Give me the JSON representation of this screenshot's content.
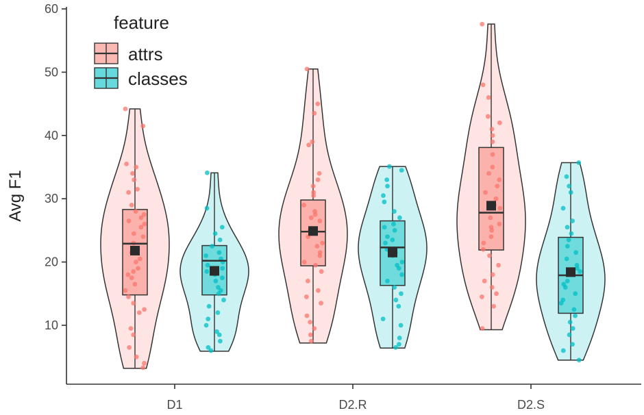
{
  "chart_data": {
    "type": "violin",
    "ylabel": "Avg F1",
    "xlabel": "",
    "ylim": [
      1,
      60
    ],
    "yticks": [
      10,
      20,
      30,
      40,
      50,
      60
    ],
    "categories": [
      "D1",
      "D2.R",
      "D2.S"
    ],
    "legend": {
      "title": "feature",
      "position": "top-left",
      "entries": [
        {
          "label": "attrs",
          "fill": "#f8766d"
        },
        {
          "label": "classes",
          "fill": "#00bfc4"
        }
      ]
    },
    "colors": {
      "attrs": "#f8766d",
      "classes": "#00bfc4",
      "line": "#333333",
      "mean": "#2b2b2b"
    },
    "series": [
      {
        "name": "attrs",
        "groups": [
          {
            "category": "D1",
            "min": 3.2,
            "q1": 14.8,
            "median": 22.9,
            "q3": 28.3,
            "max": 44.2,
            "mean": 21.8,
            "points": [
              44.2,
              41.5,
              35.5,
              35,
              34,
              33,
              31.5,
              31,
              29,
              28,
              27.5,
              27,
              26.5,
              26,
              25.5,
              24.5,
              24,
              23,
              22,
              21.5,
              20.5,
              20,
              19,
              18.5,
              18,
              17.5,
              16.5,
              15.5,
              14.5,
              13.5,
              12.5,
              12,
              9.5,
              8.5,
              6.5,
              5,
              4,
              3.3
            ]
          },
          {
            "category": "D2.R",
            "min": 7.2,
            "q1": 19.4,
            "median": 24.8,
            "q3": 29.8,
            "max": 50.5,
            "mean": 24.9,
            "points": [
              50.5,
              45,
              43.5,
              39,
              38.5,
              34,
              33,
              32,
              31,
              30.5,
              29,
              28,
              27.5,
              27,
              26.5,
              25,
              24.5,
              24,
              23,
              22.5,
              21.5,
              21,
              20,
              19.5,
              18.5,
              17,
              15.5,
              14.5,
              13.5,
              11.5,
              10.5,
              9.5,
              8.5,
              7.5
            ]
          },
          {
            "category": "D2.S",
            "min": 9.3,
            "q1": 21.9,
            "median": 27.8,
            "q3": 38.1,
            "max": 57.6,
            "mean": 28.9,
            "points": [
              57.6,
              48,
              46,
              43,
              42,
              41,
              40,
              39,
              37,
              35,
              34,
              33,
              32,
              31,
              30,
              29,
              28.5,
              27,
              26,
              25.5,
              25,
              24,
              23,
              22,
              21,
              19.5,
              18,
              17,
              16,
              15,
              14.5,
              13,
              9.5
            ]
          }
        ]
      },
      {
        "name": "classes",
        "groups": [
          {
            "category": "D1",
            "min": 5.9,
            "q1": 14.8,
            "median": 20.2,
            "q3": 22.6,
            "max": 34.1,
            "mean": 18.6,
            "points": [
              34.1,
              28.5,
              25.5,
              24.5,
              23.5,
              22.5,
              21.5,
              21,
              20.5,
              20,
              19.5,
              19,
              18.5,
              18,
              17.5,
              17,
              16,
              15.5,
              15,
              14,
              13,
              12,
              11,
              10,
              9,
              8.5,
              7.5,
              6.5,
              6
            ]
          },
          {
            "category": "D2.R",
            "min": 6.4,
            "q1": 16.3,
            "median": 22.3,
            "q3": 26.5,
            "max": 35.1,
            "mean": 21.5,
            "points": [
              35.1,
              34.5,
              33,
              32,
              30.5,
              29.5,
              28,
              27,
              26,
              25.5,
              25,
              24,
              23.5,
              23,
              22,
              21.5,
              21,
              20,
              19.5,
              19,
              18,
              17,
              16,
              15,
              14,
              13,
              11,
              10,
              8,
              7,
              6.5
            ]
          },
          {
            "category": "D2.S",
            "min": 4.5,
            "q1": 11.9,
            "median": 17.9,
            "q3": 23.9,
            "max": 35.7,
            "mean": 18.4,
            "points": [
              35.7,
              33.5,
              32,
              31,
              28.5,
              26.5,
              25.5,
              24.5,
              23.5,
              22.5,
              21.5,
              20.5,
              19.5,
              19,
              18.5,
              18,
              17,
              16.5,
              16,
              15,
              14,
              13.5,
              12.5,
              11.5,
              10.5,
              9.5,
              8.5,
              7,
              6,
              4.5
            ]
          }
        ]
      }
    ]
  }
}
